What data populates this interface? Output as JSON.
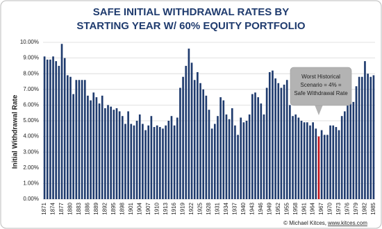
{
  "chart_data": {
    "type": "bar",
    "title": [
      "SAFE INITIAL WITHDRAWAL RATES BY",
      "STARTING YEAR W/ 60% EQUITY PORTFOLIO"
    ],
    "y_label": "Initial Withdrawal Rate",
    "categories": [
      "1871",
      null,
      null,
      "1874",
      null,
      null,
      "1877",
      null,
      null,
      "1880",
      null,
      null,
      "1883",
      null,
      null,
      "1886",
      null,
      null,
      "1889",
      null,
      null,
      "1892",
      null,
      null,
      "1895",
      null,
      null,
      "1898",
      null,
      null,
      "1901",
      null,
      null,
      "1904",
      null,
      null,
      "1907",
      null,
      null,
      "1910",
      null,
      null,
      "1913",
      null,
      null,
      "1916",
      null,
      null,
      "1919",
      null,
      null,
      "1922",
      null,
      null,
      "1925",
      null,
      null,
      "1928",
      null,
      null,
      "1931",
      null,
      null,
      "1934",
      null,
      null,
      "1937",
      null,
      null,
      "1940",
      null,
      null,
      "1943",
      null,
      null,
      "1946",
      null,
      null,
      "1949",
      null,
      null,
      "1952",
      null,
      null,
      "1955",
      null,
      null,
      "1958",
      null,
      null,
      "1961",
      null,
      null,
      "1964",
      null,
      null,
      "1967",
      null,
      null,
      "1970",
      null,
      null,
      "1973",
      null,
      null,
      "1976",
      null,
      null,
      "1979",
      null,
      null,
      "1982",
      null,
      null,
      "1985"
    ],
    "values": [
      9.1,
      8.9,
      8.9,
      9.1,
      8.8,
      8.5,
      9.9,
      9.0,
      7.9,
      7.8,
      6.7,
      7.6,
      7.6,
      7.6,
      7.6,
      6.6,
      6.3,
      6.8,
      6.5,
      6.1,
      6.6,
      5.8,
      6.0,
      5.9,
      5.7,
      5.8,
      5.6,
      5.3,
      4.8,
      5.6,
      4.8,
      4.7,
      5.0,
      5.4,
      4.8,
      4.4,
      4.7,
      5.3,
      4.6,
      4.7,
      4.6,
      4.5,
      4.7,
      5.0,
      5.3,
      4.7,
      5.2,
      7.1,
      7.8,
      8.5,
      9.6,
      8.7,
      7.6,
      8.1,
      7.4,
      7.0,
      6.6,
      5.7,
      4.5,
      4.8,
      5.3,
      6.5,
      6.3,
      5.4,
      5.1,
      5.8,
      4.7,
      4.1,
      5.2,
      4.9,
      5.0,
      5.4,
      6.7,
      6.8,
      6.5,
      6.1,
      5.4,
      7.1,
      8.1,
      8.2,
      7.7,
      7.4,
      7.1,
      7.3,
      7.6,
      6.0,
      5.3,
      5.4,
      5.2,
      5.0,
      4.9,
      4.9,
      4.7,
      4.9,
      4.5,
      4.0,
      4.4,
      4.1,
      4.1,
      4.7,
      4.7,
      4.6,
      4.4,
      5.3,
      5.6,
      6.1,
      6.1,
      6.2,
      7.2,
      7.8,
      7.8,
      8.8,
      8.0,
      7.8,
      7.9
    ],
    "colors": [
      "#1f3b6e",
      "#1f3b6e",
      "#1f3b6e",
      "#1f3b6e",
      "#1f3b6e",
      "#1f3b6e",
      "#1f3b6e",
      "#1f3b6e",
      "#1f3b6e",
      "#1f3b6e",
      "#1f3b6e",
      "#1f3b6e",
      "#1f3b6e",
      "#1f3b6e",
      "#1f3b6e",
      "#1f3b6e",
      "#1f3b6e",
      "#1f3b6e",
      "#1f3b6e",
      "#1f3b6e",
      "#1f3b6e",
      "#1f3b6e",
      "#1f3b6e",
      "#1f3b6e",
      "#1f3b6e",
      "#1f3b6e",
      "#1f3b6e",
      "#1f3b6e",
      "#1f3b6e",
      "#1f3b6e",
      "#1f3b6e",
      "#1f3b6e",
      "#1f3b6e",
      "#1f3b6e",
      "#1f3b6e",
      "#1f3b6e",
      "#1f3b6e",
      "#1f3b6e",
      "#1f3b6e",
      "#1f3b6e",
      "#1f3b6e",
      "#1f3b6e",
      "#1f3b6e",
      "#1f3b6e",
      "#1f3b6e",
      "#1f3b6e",
      "#1f3b6e",
      "#1f3b6e",
      "#1f3b6e",
      "#1f3b6e",
      "#1f3b6e",
      "#1f3b6e",
      "#1f3b6e",
      "#1f3b6e",
      "#1f3b6e",
      "#1f3b6e",
      "#1f3b6e",
      "#1f3b6e",
      "#1f3b6e",
      "#1f3b6e",
      "#1f3b6e",
      "#1f3b6e",
      "#1f3b6e",
      "#1f3b6e",
      "#1f3b6e",
      "#1f3b6e",
      "#1f3b6e",
      "#1f3b6e",
      "#1f3b6e",
      "#1f3b6e",
      "#1f3b6e",
      "#1f3b6e",
      "#1f3b6e",
      "#1f3b6e",
      "#1f3b6e",
      "#1f3b6e",
      "#1f3b6e",
      "#1f3b6e",
      "#1f3b6e",
      "#1f3b6e",
      "#1f3b6e",
      "#1f3b6e",
      "#1f3b6e",
      "#1f3b6e",
      "#1f3b6e",
      "#1f3b6e",
      "#1f3b6e",
      "#1f3b6e",
      "#1f3b6e",
      "#1f3b6e",
      "#1f3b6e",
      "#1f3b6e",
      "#1f3b6e",
      "#1f3b6e",
      "#1f3b6e",
      "#c0141c",
      "#1f3b6e",
      "#1f3b6e",
      "#1f3b6e",
      "#1f3b6e",
      "#1f3b6e",
      "#1f3b6e",
      "#1f3b6e",
      "#1f3b6e",
      "#1f3b6e",
      "#1f3b6e",
      "#1f3b6e",
      "#1f3b6e",
      "#1f3b6e",
      "#1f3b6e",
      "#1f3b6e",
      "#1f3b6e",
      "#1f3b6e",
      "#1f3b6e",
      "#1f3b6e"
    ],
    "ylim": [
      0,
      10
    ],
    "yticks": [
      {
        "value": 0,
        "label": "0.00%"
      },
      {
        "value": 1,
        "label": "1.00%"
      },
      {
        "value": 2,
        "label": "2.00%"
      },
      {
        "value": 3,
        "label": "3.00%"
      },
      {
        "value": 4,
        "label": "4.00%"
      },
      {
        "value": 5,
        "label": "5.00%"
      },
      {
        "value": 6,
        "label": "6.00%"
      },
      {
        "value": 7,
        "label": "7.00%"
      },
      {
        "value": 8,
        "label": "8.00%"
      },
      {
        "value": 9,
        "label": "9.00%"
      },
      {
        "value": 10,
        "label": "10.00%"
      }
    ],
    "grid": true,
    "annotation": [
      "Worst Historical",
      "Scenario = 4% =",
      "Safe Withdrawal Rate"
    ],
    "source": "© Michael Kitces,",
    "source_link": "www.kitces.com"
  }
}
